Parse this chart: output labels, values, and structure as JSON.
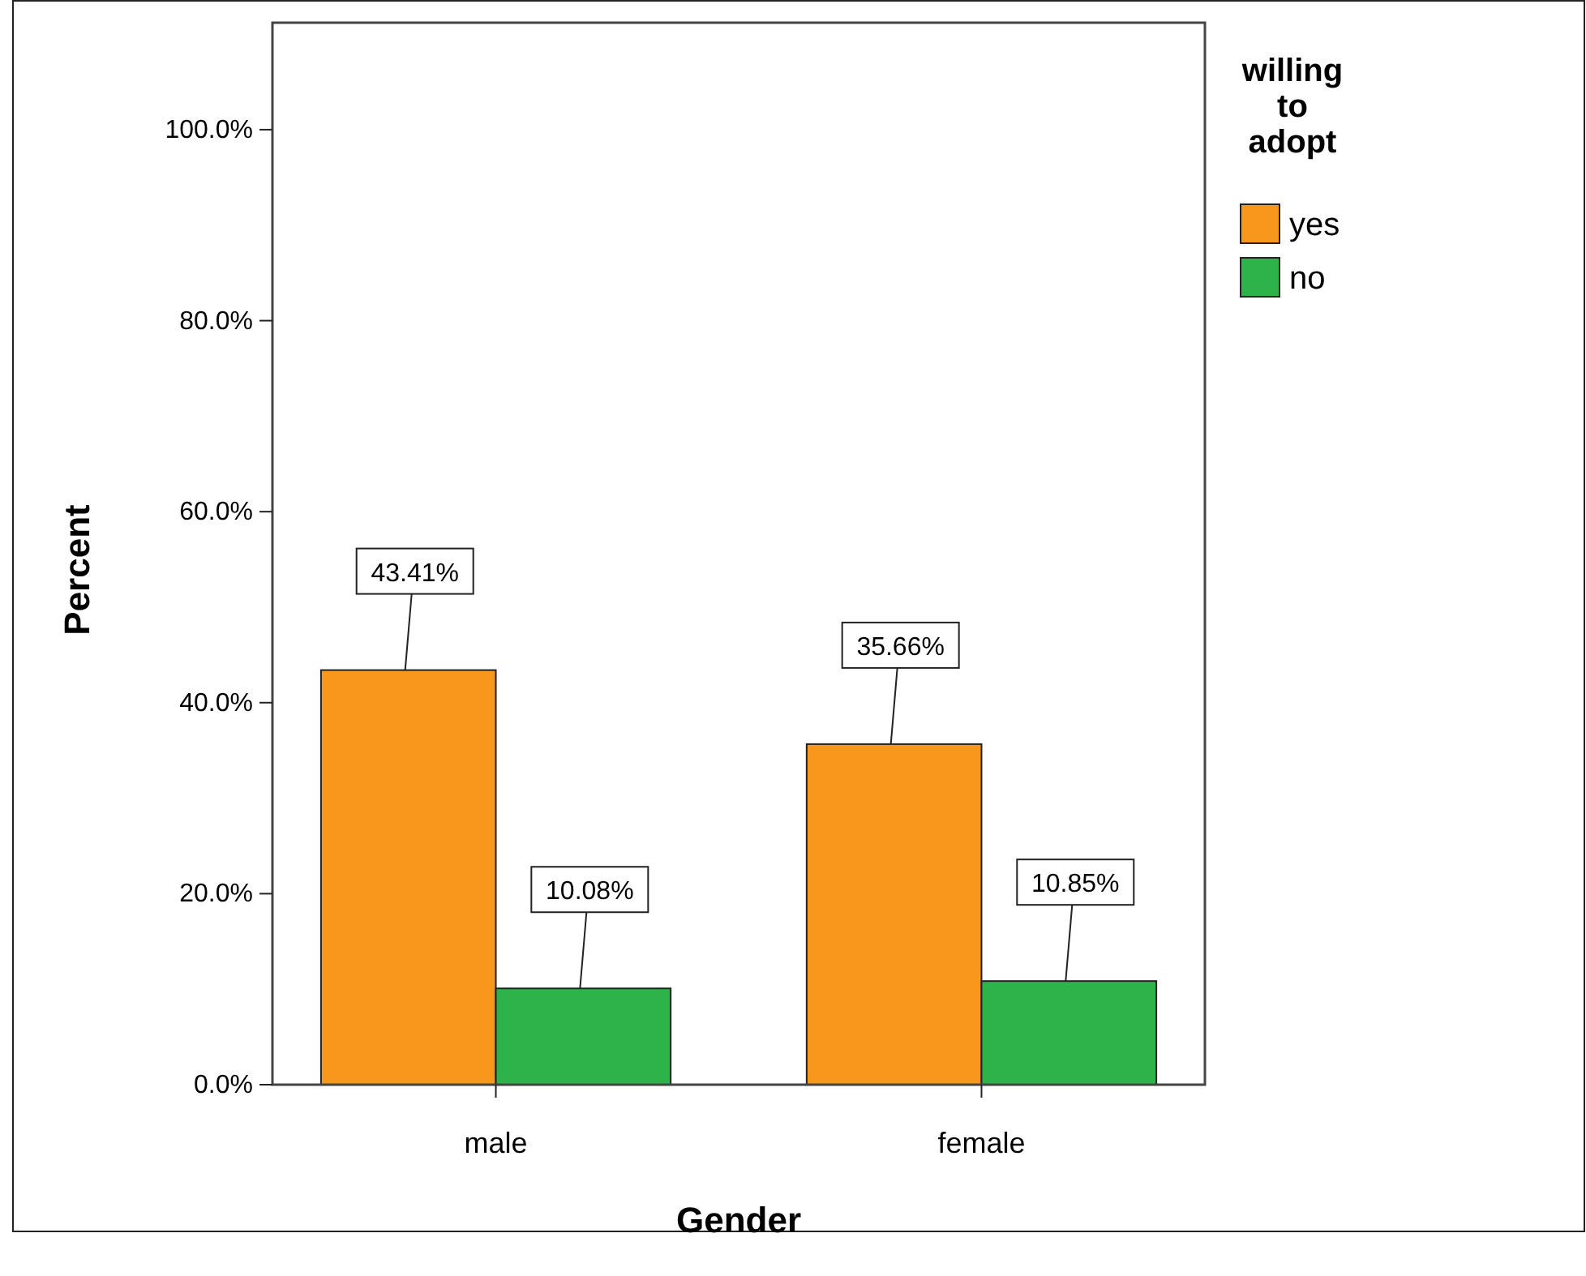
{
  "chart_data": {
    "type": "bar",
    "xlabel": "Gender",
    "ylabel": "Percent",
    "legend_title": "willing to adopt",
    "categories": [
      "male",
      "female"
    ],
    "series": [
      {
        "name": "yes",
        "color": "#f7981d",
        "values": [
          43.41,
          35.66
        ],
        "value_labels": [
          "43.41%",
          "35.66%"
        ]
      },
      {
        "name": "no",
        "color": "#2db34a",
        "values": [
          10.08,
          10.85
        ],
        "value_labels": [
          "10.08%",
          "10.85%"
        ]
      }
    ],
    "ylim": [
      0,
      111.2
    ],
    "yticks": [
      {
        "value": 0,
        "label": "0.0%"
      },
      {
        "value": 20,
        "label": "20.0%"
      },
      {
        "value": 40,
        "label": "40.0%"
      },
      {
        "value": 60,
        "label": "60.0%"
      },
      {
        "value": 80,
        "label": "80.0%"
      },
      {
        "value": 100,
        "label": "100.0%"
      }
    ],
    "grid": false,
    "legend": "right"
  }
}
